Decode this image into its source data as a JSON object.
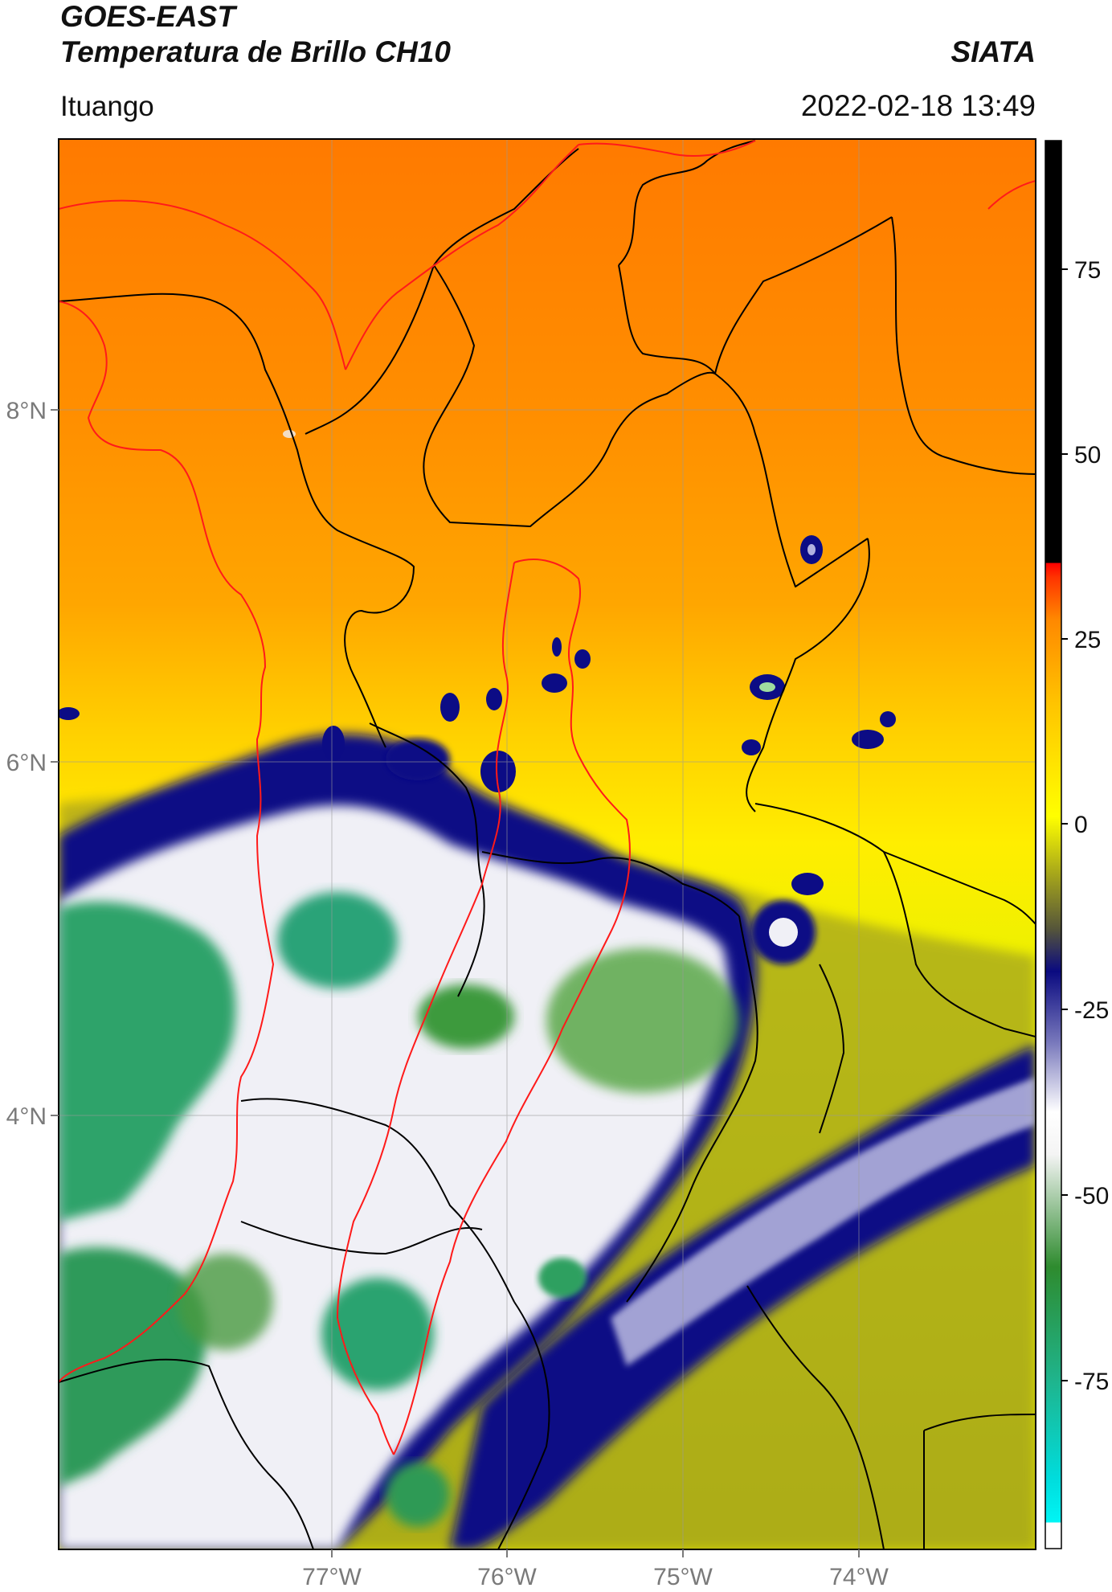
{
  "header": {
    "satellite": "GOES-EAST",
    "product": "Temperatura de Brillo CH10",
    "organization": "SIATA",
    "location": "Ituango",
    "datetime": "2022-02-18 13:49"
  },
  "map": {
    "lat_labels": [
      "8°N",
      "6°N",
      "4°N"
    ],
    "lon_labels": [
      "77°W",
      "76°W",
      "75°W",
      "74°W"
    ],
    "border_colors": {
      "international": "#ff1a1a",
      "departments": "#000000"
    }
  },
  "colorbar": {
    "ticks": [
      "75",
      "50",
      "25",
      "0",
      "-25",
      "-50",
      "-75"
    ],
    "colors": {
      "top": "#000000",
      "warm": "#ff0000",
      "orange": "#ff8c00",
      "yellow": "#ffff00",
      "olive": "#6b6b2a",
      "navy": "#0a0a80",
      "white": "#ffffff",
      "green": "#2e8b2e",
      "teal": "#1fb496",
      "cyan": "#00e5e5"
    }
  }
}
